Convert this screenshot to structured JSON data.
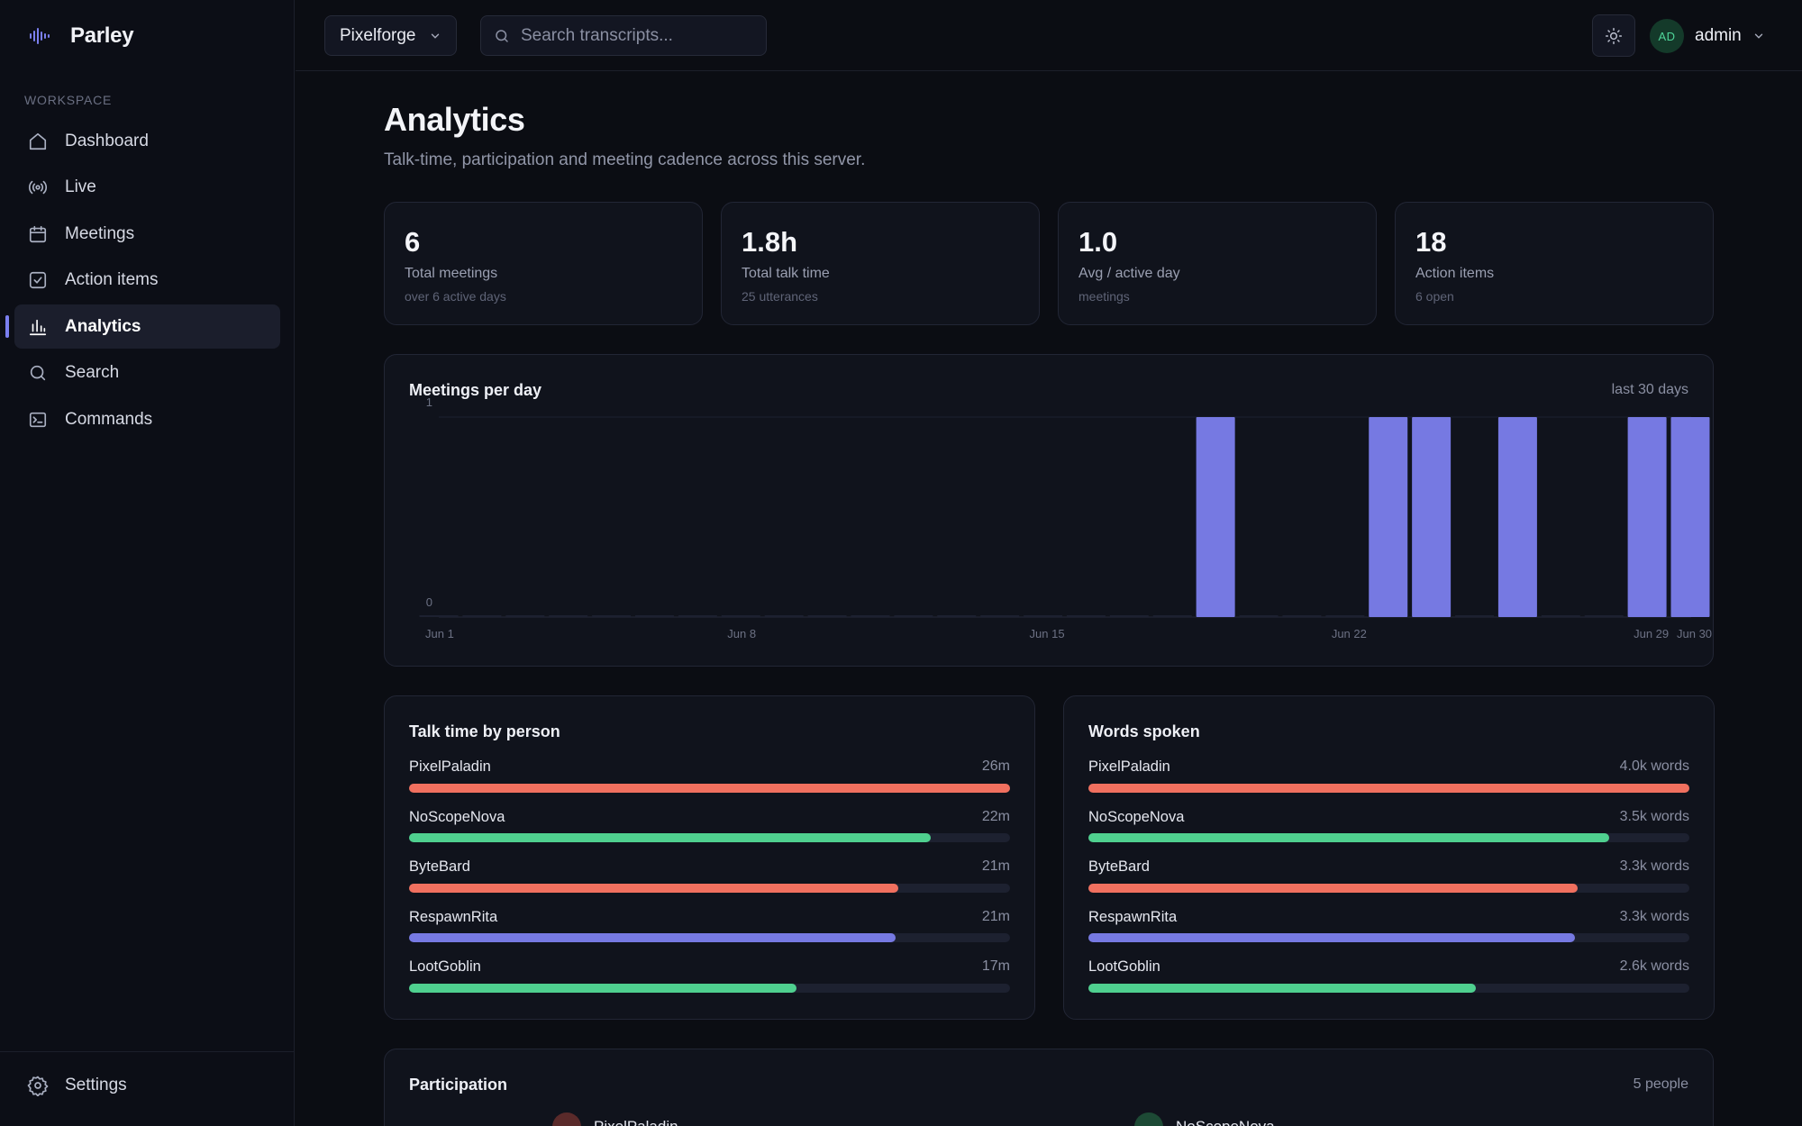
{
  "app": {
    "name": "Parley"
  },
  "sidebar": {
    "section_label": "WORKSPACE",
    "items": [
      {
        "label": "Dashboard",
        "icon": "home-icon"
      },
      {
        "label": "Live",
        "icon": "broadcast-icon"
      },
      {
        "label": "Meetings",
        "icon": "calendar-icon"
      },
      {
        "label": "Action items",
        "icon": "checkbox-icon"
      },
      {
        "label": "Analytics",
        "icon": "bar-chart-icon",
        "active": true
      },
      {
        "label": "Search",
        "icon": "search-icon"
      },
      {
        "label": "Commands",
        "icon": "terminal-icon"
      }
    ],
    "footer": {
      "label": "Settings",
      "icon": "gear-icon"
    }
  },
  "topbar": {
    "server": "Pixelforge",
    "search_placeholder": "Search transcripts...",
    "user_initials": "AD",
    "user_name": "admin"
  },
  "page": {
    "title": "Analytics",
    "subtitle": "Talk-time, participation and meeting cadence across this server."
  },
  "stats": [
    {
      "value": "6",
      "label": "Total meetings",
      "sub": "over 6 active days"
    },
    {
      "value": "1.8h",
      "label": "Total talk time",
      "sub": "25 utterances"
    },
    {
      "value": "1.0",
      "label": "Avg / active day",
      "sub": "meetings"
    },
    {
      "value": "18",
      "label": "Action items",
      "sub": "6 open"
    }
  ],
  "chart_data": {
    "type": "bar",
    "title": "Meetings per day",
    "range_label": "last 30 days",
    "x": [
      "Jun 1",
      "Jun 2",
      "Jun 3",
      "Jun 4",
      "Jun 5",
      "Jun 6",
      "Jun 7",
      "Jun 8",
      "Jun 9",
      "Jun 10",
      "Jun 11",
      "Jun 12",
      "Jun 13",
      "Jun 14",
      "Jun 15",
      "Jun 16",
      "Jun 17",
      "Jun 18",
      "Jun 19",
      "Jun 20",
      "Jun 21",
      "Jun 22",
      "Jun 23",
      "Jun 24",
      "Jun 25",
      "Jun 26",
      "Jun 27",
      "Jun 28",
      "Jun 29",
      "Jun 30"
    ],
    "values": [
      0,
      0,
      0,
      0,
      0,
      0,
      0,
      0,
      0,
      0,
      0,
      0,
      0,
      0,
      0,
      0,
      0,
      0,
      1,
      0,
      0,
      0,
      1,
      1,
      0,
      1,
      0,
      0,
      1,
      1
    ],
    "x_tick_labels": [
      "Jun 1",
      "Jun 8",
      "Jun 15",
      "Jun 22",
      "Jun 29",
      "Jun 30"
    ],
    "y_tick_labels": [
      "0",
      "1"
    ],
    "ylim": [
      0,
      1
    ],
    "bar_color": "#7679e2"
  },
  "talk_time": {
    "title": "Talk time by person",
    "rows": [
      {
        "name": "PixelPaladin",
        "value": "26m",
        "fraction": 1.0,
        "color": "#f0705f"
      },
      {
        "name": "NoScopeNova",
        "value": "22m",
        "fraction": 0.868,
        "color": "#4fd08f"
      },
      {
        "name": "ByteBard",
        "value": "21m",
        "fraction": 0.814,
        "color": "#f0705f"
      },
      {
        "name": "RespawnRita",
        "value": "21m",
        "fraction": 0.81,
        "color": "#7679e2"
      },
      {
        "name": "LootGoblin",
        "value": "17m",
        "fraction": 0.645,
        "color": "#4fd08f"
      }
    ]
  },
  "words_spoken": {
    "title": "Words spoken",
    "rows": [
      {
        "name": "PixelPaladin",
        "value": "4.0k words",
        "fraction": 1.0,
        "color": "#f0705f"
      },
      {
        "name": "NoScopeNova",
        "value": "3.5k words",
        "fraction": 0.866,
        "color": "#4fd08f"
      },
      {
        "name": "ByteBard",
        "value": "3.3k words",
        "fraction": 0.814,
        "color": "#f0705f"
      },
      {
        "name": "RespawnRita",
        "value": "3.3k words",
        "fraction": 0.81,
        "color": "#7679e2"
      },
      {
        "name": "LootGoblin",
        "value": "2.6k words",
        "fraction": 0.645,
        "color": "#4fd08f"
      }
    ]
  },
  "participation": {
    "title": "Participation",
    "count_label": "5 people",
    "people": [
      {
        "name": "PixelPaladin",
        "color": "#5a2a2a"
      },
      {
        "name": "NoScopeNova",
        "color": "#1d4a35"
      }
    ]
  }
}
